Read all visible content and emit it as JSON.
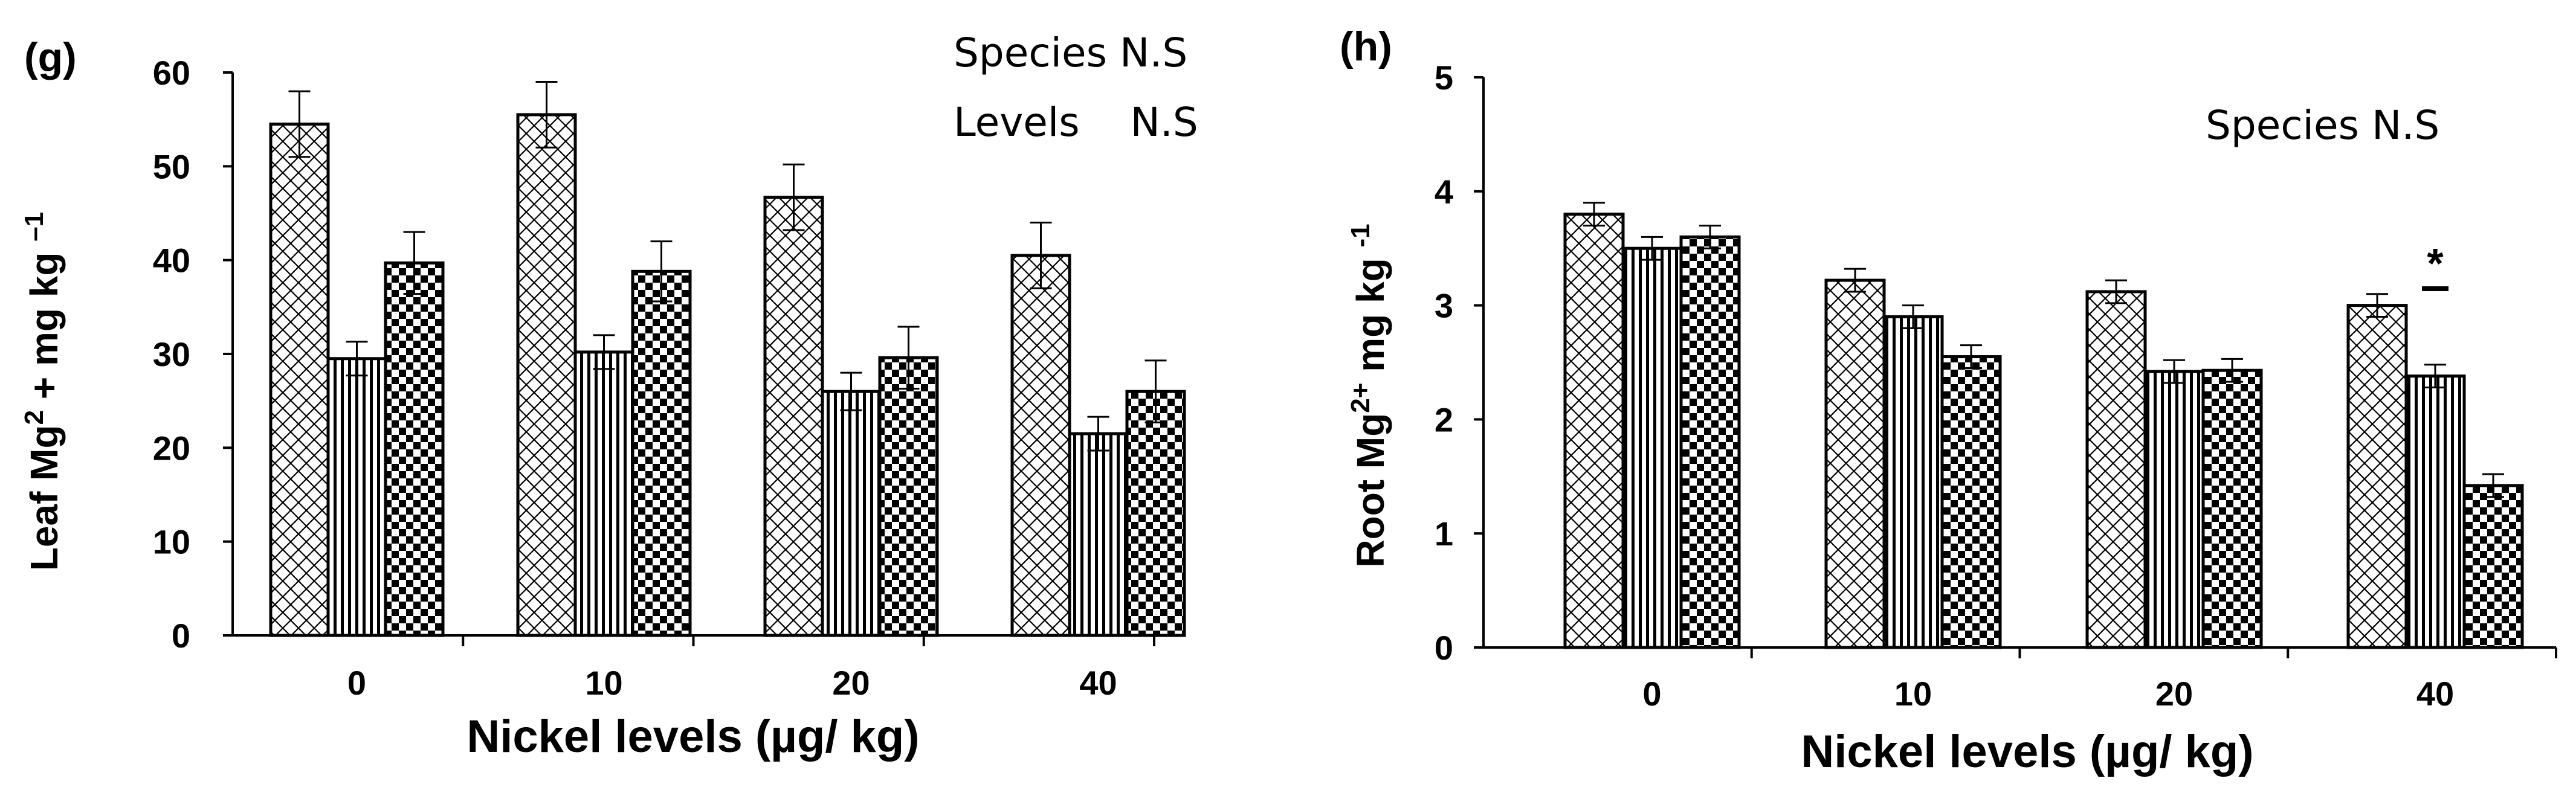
{
  "chart_data": [
    {
      "type": "bar",
      "panel_label": "(g)",
      "categories": [
        "0",
        "10",
        "20",
        "40"
      ],
      "series": [
        {
          "name": "species-1-crosshatch",
          "values": [
            54.5,
            55.5,
            46.7,
            40.5
          ],
          "errors": [
            3.5,
            3.5,
            3.5,
            3.5
          ]
        },
        {
          "name": "species-2-vertical",
          "values": [
            29.5,
            30.2,
            26.0,
            21.5
          ],
          "errors": [
            1.8,
            1.8,
            2.0,
            1.8
          ]
        },
        {
          "name": "species-3-checker",
          "values": [
            39.7,
            38.8,
            29.6,
            26.0
          ],
          "errors": [
            3.3,
            3.2,
            3.3,
            3.3
          ]
        }
      ],
      "xlabel": "Nickel levels (µg/ kg)",
      "ylabel_parts": [
        "Leaf Mg",
        "2",
        " + mg kg ",
        "–1"
      ],
      "ylim": [
        0,
        60
      ],
      "yticks": [
        0,
        10,
        20,
        30,
        40,
        50,
        60
      ],
      "annotations": [
        "Species N.S",
        "Levels    N.S"
      ]
    },
    {
      "type": "bar",
      "panel_label": "(h)",
      "categories": [
        "0",
        "10",
        "20",
        "40"
      ],
      "series": [
        {
          "name": "species-1-crosshatch",
          "values": [
            3.8,
            3.22,
            3.12,
            3.0
          ],
          "errors": [
            0.1,
            0.1,
            0.1,
            0.1
          ]
        },
        {
          "name": "species-2-vertical",
          "values": [
            3.5,
            2.9,
            2.42,
            2.38
          ],
          "errors": [
            0.1,
            0.1,
            0.1,
            0.1
          ]
        },
        {
          "name": "species-3-checker",
          "values": [
            3.6,
            2.55,
            2.43,
            1.42
          ],
          "errors": [
            0.1,
            0.1,
            0.1,
            0.1
          ]
        }
      ],
      "xlabel": "Nickel levels (µg/ kg)",
      "ylabel_parts": [
        "Root Mg",
        "2+",
        " mg kg ",
        "-1"
      ],
      "ylim": [
        0,
        5
      ],
      "yticks": [
        0,
        1,
        2,
        3,
        4,
        5
      ],
      "annotations": [
        "Species N.S"
      ],
      "significance_marker": "*"
    }
  ]
}
